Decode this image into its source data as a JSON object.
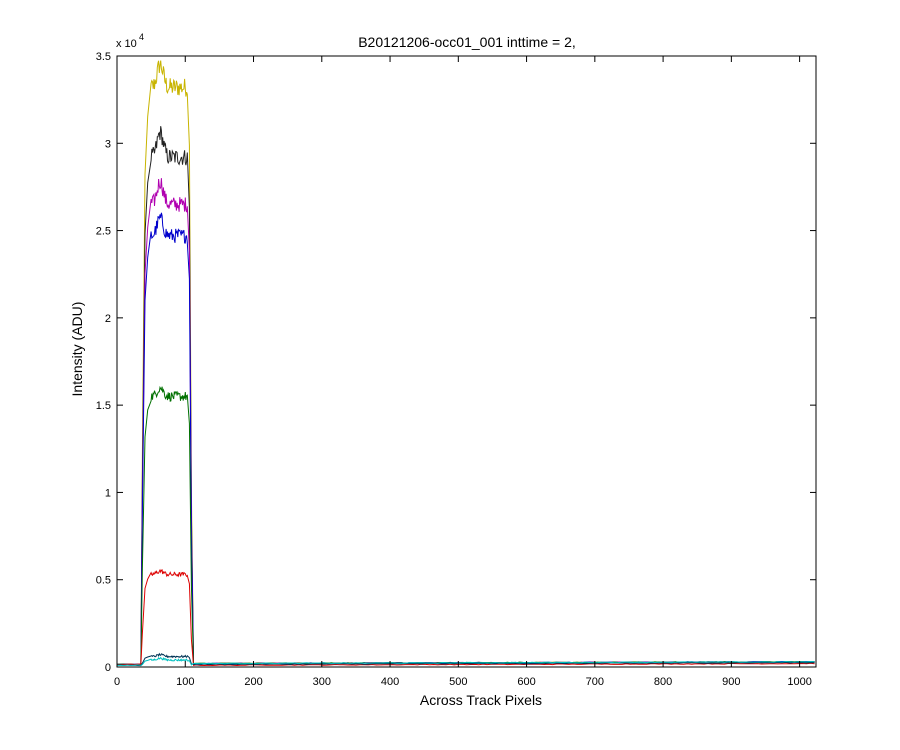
{
  "chart_data": {
    "type": "line",
    "title": "B20121206-occ01_001 inttime = 2,",
    "xlabel": "Across Track Pixels",
    "ylabel": "Intensity (ADU)",
    "exponent_prefix": "x 10",
    "exponent": "4",
    "xlim": [
      0,
      1024
    ],
    "ylim": [
      0,
      3.5
    ],
    "xticks": [
      "0",
      "100",
      "200",
      "300",
      "400",
      "500",
      "600",
      "700",
      "800",
      "900",
      "1000"
    ],
    "yticks": [
      "0",
      "0.5",
      "1",
      "1.5",
      "2",
      "2.5",
      "3",
      "3.5"
    ],
    "grid": false,
    "legend": "none",
    "profile": {
      "x_rise_start": 35,
      "x_rise_end": 50,
      "x_fall_start": 103,
      "x_fall_end": 112,
      "x_end": 1023
    },
    "series": [
      {
        "color": "#c8b400",
        "start": 0.015,
        "peak": 3.32,
        "peak_max": 3.45,
        "end": 0.02
      },
      {
        "color": "#222222",
        "start": 0.015,
        "peak": 2.92,
        "peak_max": 3.06,
        "end": 0.02
      },
      {
        "color": "#b000b0",
        "start": 0.015,
        "peak": 2.65,
        "peak_max": 2.78,
        "end": 0.02
      },
      {
        "color": "#0000cc",
        "start": 0.015,
        "peak": 2.47,
        "peak_max": 2.57,
        "end": 0.02
      },
      {
        "color": "#007000",
        "start": 0.015,
        "peak": 1.55,
        "peak_max": 1.6,
        "end": 0.02
      },
      {
        "color": "#dd0000",
        "start": 0.015,
        "peak": 0.53,
        "peak_max": 0.55,
        "end": 0.01
      },
      {
        "color": "#003355",
        "start": 0.01,
        "peak": 0.06,
        "peak_max": 0.07,
        "end": 0.015
      },
      {
        "color": "#00c0c0",
        "start": 0.01,
        "peak": 0.04,
        "peak_max": 0.05,
        "end": 0.02
      }
    ]
  }
}
